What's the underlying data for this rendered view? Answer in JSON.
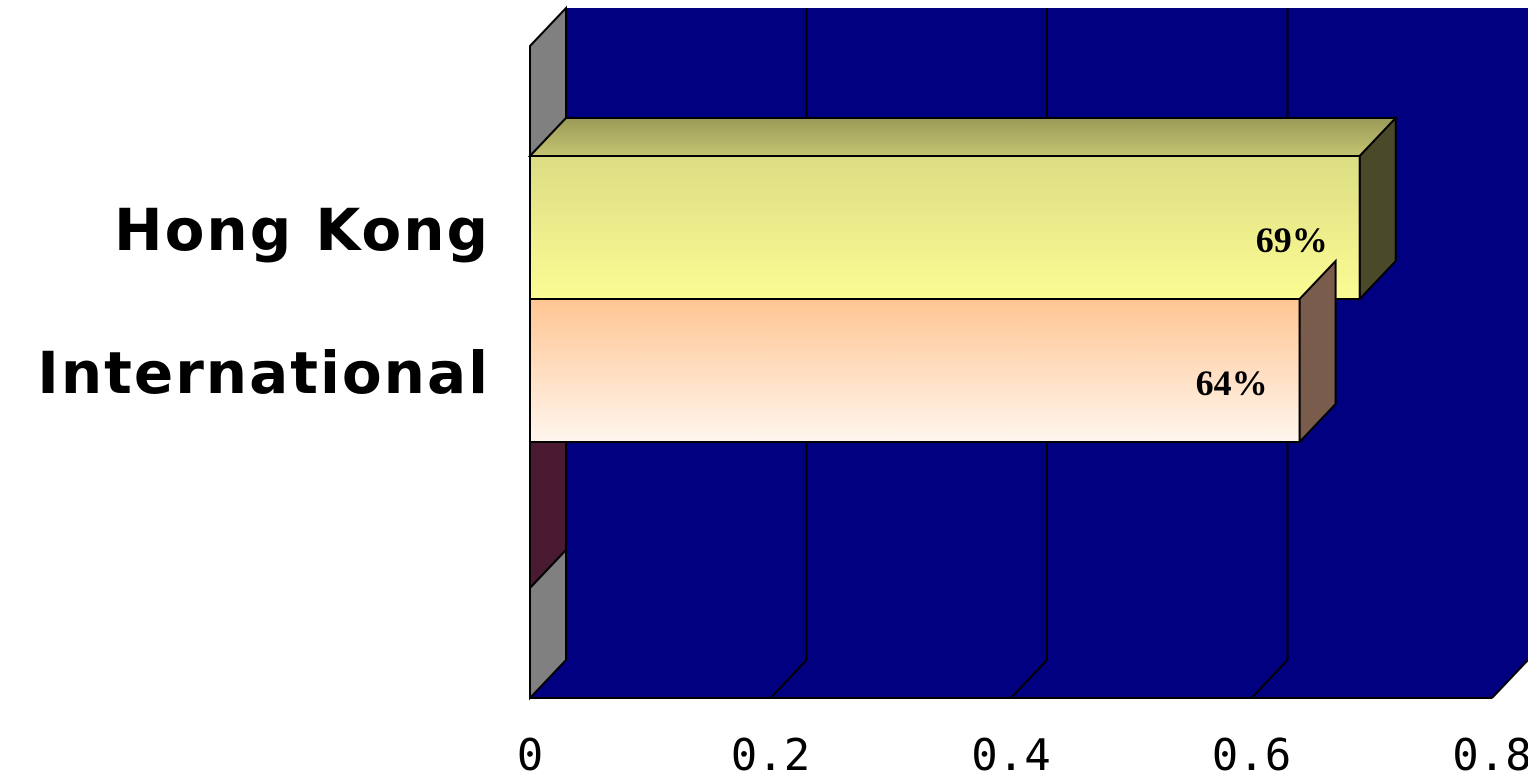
{
  "chart_data": {
    "type": "bar",
    "orientation": "horizontal",
    "style": "3d",
    "categories": [
      "Hong Kong",
      "International"
    ],
    "values": [
      0.69,
      0.64
    ],
    "data_labels": [
      "69%",
      "64%"
    ],
    "colors": [
      "#f4f48a",
      "#ffcc99"
    ],
    "xlim": [
      0,
      0.8
    ],
    "xticks": [
      "0",
      "0.2",
      "0.4",
      "0.6",
      "0.8"
    ],
    "grid": true,
    "plot_background": "#000080",
    "legend": "none"
  }
}
